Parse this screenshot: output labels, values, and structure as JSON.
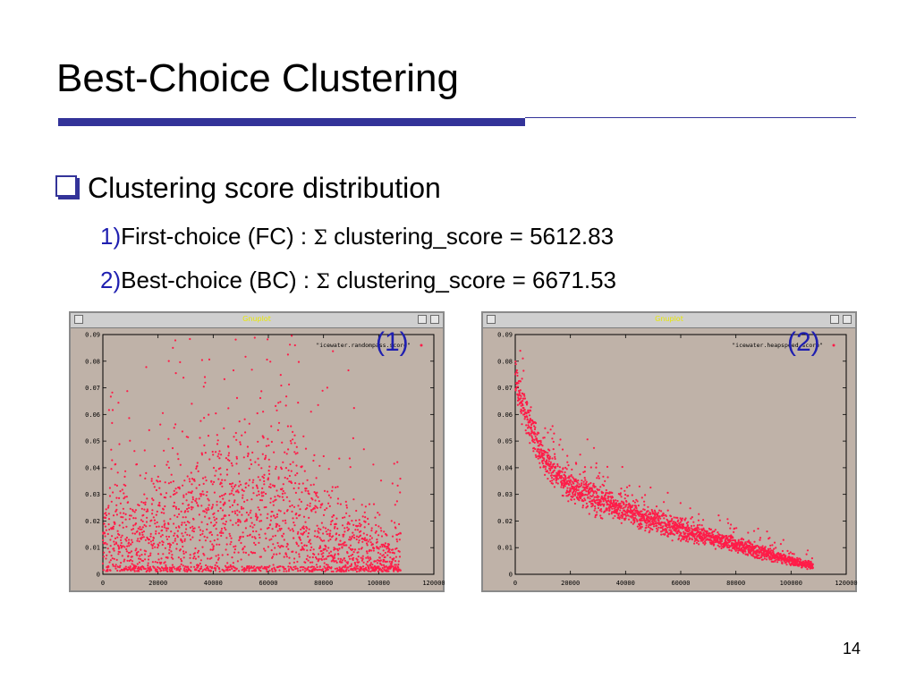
{
  "slide": {
    "title": "Best-Choice Clustering",
    "bullet": "Clustering score distribution",
    "items": [
      {
        "num": "1)",
        "prefix": "First-choice (FC) : ",
        "sigma": "Σ",
        "suffix": " clustering_score = 5612.83"
      },
      {
        "num": "2)",
        "prefix": "Best-choice (BC) : ",
        "sigma": "Σ",
        "suffix": " clustering_score = 6671.53"
      }
    ],
    "page_number": "14",
    "figure_labels": [
      "(1)",
      "(2)"
    ]
  },
  "colors": {
    "accent": "#333399",
    "item_number": "#1f1fb0",
    "plot_background": "#bfb2a8",
    "points": "#ff1c48",
    "gnuplot_title": "#e8e800"
  },
  "chart_data": [
    {
      "type": "scatter",
      "window_title": "Gnuplot",
      "legend": "\"icewater.randompass.score\"",
      "legend_position": "top-right",
      "xlim": [
        0,
        120000
      ],
      "ylim": [
        0,
        0.09
      ],
      "x_ticks": [
        "0",
        "20000",
        "40000",
        "60000",
        "80000",
        "100000",
        "120000"
      ],
      "y_ticks": [
        "0",
        "0.01",
        "0.02",
        "0.03",
        "0.04",
        "0.05",
        "0.06",
        "0.07",
        "0.08",
        "0.09"
      ],
      "grid": false,
      "profile": [
        [
          0,
          0.01,
          0.014
        ],
        [
          10000,
          0.012,
          0.017
        ],
        [
          20000,
          0.014,
          0.02
        ],
        [
          30000,
          0.016,
          0.022
        ],
        [
          40000,
          0.018,
          0.024
        ],
        [
          50000,
          0.019,
          0.026
        ],
        [
          55000,
          0.018,
          0.025
        ],
        [
          60000,
          0.022,
          0.028
        ],
        [
          65000,
          0.02,
          0.026
        ],
        [
          70000,
          0.016,
          0.022
        ],
        [
          80000,
          0.01,
          0.015
        ],
        [
          90000,
          0.008,
          0.012
        ],
        [
          100000,
          0.006,
          0.01
        ],
        [
          108000,
          0.005,
          0.009
        ]
      ],
      "x_max_data": 108000
    },
    {
      "type": "scatter",
      "window_title": "Gnuplot",
      "legend": "\"icewater.heapspeed.score\"",
      "legend_position": "top-right",
      "xlim": [
        0,
        120000
      ],
      "ylim": [
        0,
        0.09
      ],
      "x_ticks": [
        "0",
        "20000",
        "40000",
        "60000",
        "80000",
        "100000",
        "120000"
      ],
      "y_ticks": [
        "0",
        "0.01",
        "0.02",
        "0.03",
        "0.04",
        "0.05",
        "0.06",
        "0.07",
        "0.08",
        "0.09"
      ],
      "grid": false,
      "profile": [
        [
          0,
          0.075,
          0.006
        ],
        [
          2000,
          0.066,
          0.005
        ],
        [
          5000,
          0.056,
          0.005
        ],
        [
          10000,
          0.044,
          0.004
        ],
        [
          15000,
          0.037,
          0.004
        ],
        [
          20000,
          0.033,
          0.004
        ],
        [
          30000,
          0.028,
          0.004
        ],
        [
          40000,
          0.024,
          0.003
        ],
        [
          50000,
          0.02,
          0.003
        ],
        [
          60000,
          0.017,
          0.003
        ],
        [
          70000,
          0.014,
          0.002
        ],
        [
          80000,
          0.011,
          0.002
        ],
        [
          90000,
          0.008,
          0.002
        ],
        [
          100000,
          0.005,
          0.001
        ],
        [
          108000,
          0.003,
          0.001
        ]
      ],
      "x_max_data": 108000
    }
  ]
}
